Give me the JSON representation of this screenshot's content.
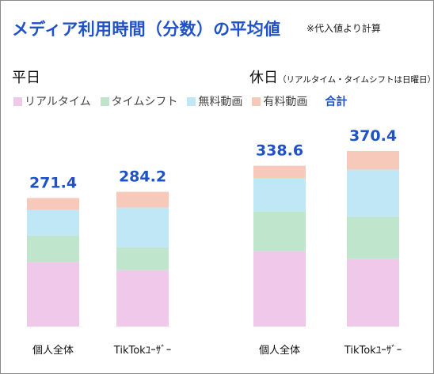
{
  "title": "メディア利用時間（分数）の平均値",
  "note": "※代入値より計算",
  "weekday_heading": "平日",
  "holiday_heading": "休日",
  "holiday_subheading": "（リアルタイム・タイムシフトは日曜日）",
  "legend": {
    "items": [
      {
        "label": "リアルタイム",
        "color": "#f0c8ea"
      },
      {
        "label": "タイムシフト",
        "color": "#bfe6cc"
      },
      {
        "label": "無料動画",
        "color": "#bfe7f5"
      },
      {
        "label": "有料動画",
        "color": "#f7c9bb"
      }
    ],
    "total_label": "合計"
  },
  "chart_data": [
    {
      "type": "bar",
      "stacked": true,
      "title": "平日",
      "categories": [
        "個人全体",
        "TikTokﾕｰｻﾞｰ"
      ],
      "series": [
        {
          "name": "リアルタイム",
          "values": [
            136,
            119
          ]
        },
        {
          "name": "タイムシフト",
          "values": [
            56,
            48
          ]
        },
        {
          "name": "無料動画",
          "values": [
            54,
            84
          ]
        },
        {
          "name": "有料動画",
          "values": [
            25,
            33
          ]
        }
      ],
      "totals": [
        271.4,
        284.2
      ]
    },
    {
      "type": "bar",
      "stacked": true,
      "title": "休日",
      "categories": [
        "個人全体",
        "TikTokﾕｰｻﾞｰ"
      ],
      "series": [
        {
          "name": "リアルタイム",
          "values": [
            159,
            143
          ]
        },
        {
          "name": "タイムシフト",
          "values": [
            84,
            89
          ]
        },
        {
          "name": "無料動画",
          "values": [
            69,
            99
          ]
        },
        {
          "name": "有料動画",
          "values": [
            27,
            39
          ]
        }
      ],
      "totals": [
        338.6,
        370.4
      ]
    }
  ]
}
